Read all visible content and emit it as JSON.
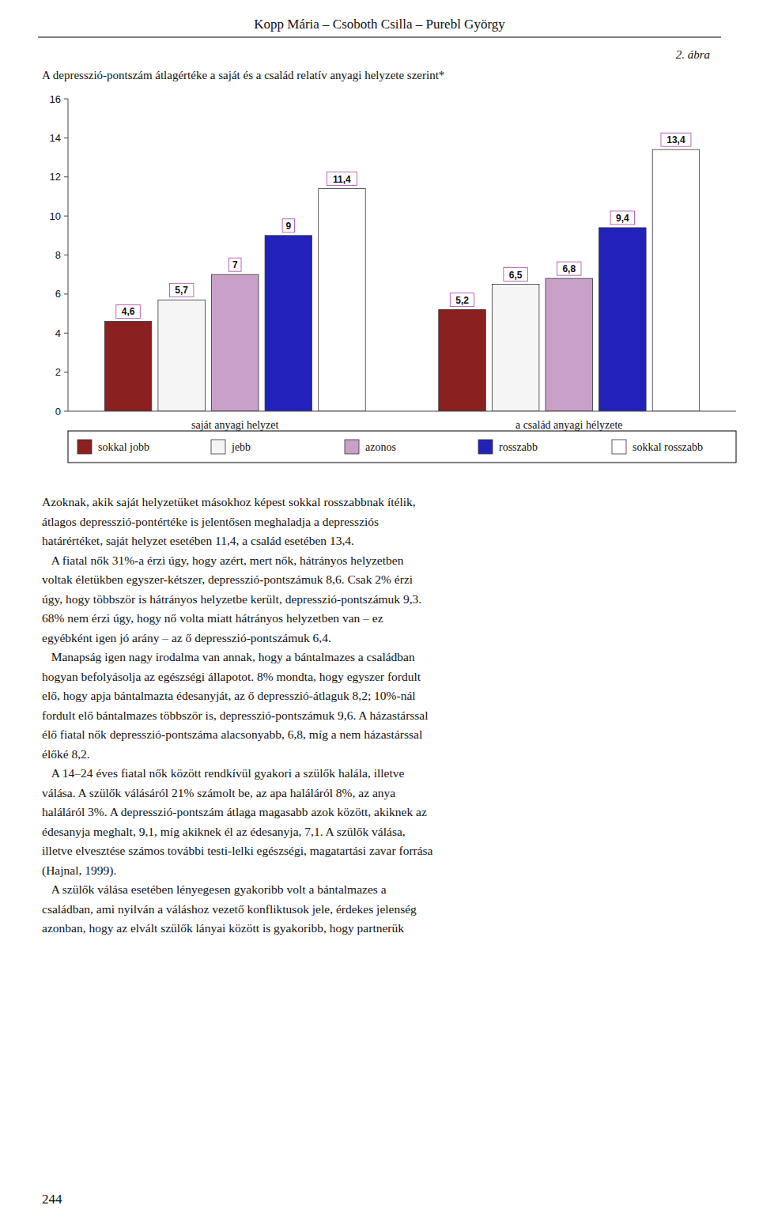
{
  "header": "Kopp Mária – Csoboth Csilla – Purebl György",
  "figure_label": "2. ábra",
  "page_number": "244",
  "body_paragraphs": [
    "Azoknak, akik saját helyzetüket másokhoz képest sokkal rosszabbnak ítélik,",
    "átlagos depresszió-pontértéke is jelentősen meghaladja a depressziós",
    "határértéket, saját helyzet esetében 11,4, a család esetében 13,4.",
    "   A fiatal nők 31%-a érzi úgy, hogy azért, mert nők, hátrányos helyzetben",
    "voltak életükben egyszer-kétszer, depresszió-pontszámuk 8,6. Csak 2% érzi",
    "úgy, hogy többször is hátrányos helyzetbe került, depresszió-pontszámuk 9,3.",
    "68% nem érzi úgy, hogy nő volta miatt hátrányos helyzetben van – ez",
    "egyébként igen jó arány – az ő depresszió-pontszámuk 6,4.",
    "   Manapság igen nagy irodalma van annak, hogy a bántalmazes a családban",
    "hogyan befolyásolja az egészségi állapotot. 8% mondta, hogy egyszer fordult",
    "elő, hogy apja bántalmazta édesanyját, az ő depresszió-átlaguk 8,2; 10%-nál",
    "fordult elő bántalmazes többször is, depresszió-pontszámuk 9,6. A házastárssal",
    "élő fiatal nők depresszió-pontszáma alacsonyabb, 6,8, míg a nem házastárssal",
    "élőké 8,2.",
    "   A 14–24 éves fiatal nők között rendkívül gyakori a szülők halála, illetve",
    "válása. A szülők válásáról 21% számolt be, az apa haláláról 8%, az anya",
    "haláláról 3%. A depresszió-pontszám átlaga magasabb azok között, akiknek az",
    "édesanyja meghalt, 9,1, míg akiknek él az édesanyja, 7,1. A szülők válása,",
    "illetve elvesztése számos további testi-lelki egészségi, magatartási zavar forrása",
    "(Hajnal, 1999).",
    "   A szülők válása esetében lényegesen gyakoribb volt a bántalmazes a",
    "családban, ami nyilván a váláshoz vezető konfliktusok jele, érdekes jelenség",
    "azonban, hogy az elvált szülők lányai között is gyakoribb, hogy partnerük"
  ],
  "chart_data": {
    "type": "bar",
    "title": "A depresszió-pontszám átlagértéke a saját és a család relatív anyagi helyzete szerint*",
    "categories": [
      "saját anyagi helyzet",
      "a család anyagi hélyzete"
    ],
    "series": [
      {
        "name": "sokkal jobb",
        "color": "#8B2020",
        "values": [
          4.6,
          5.2
        ],
        "value_labels": [
          "4,6",
          "5,2"
        ]
      },
      {
        "name": "jebb",
        "color": "#F5F5F5",
        "values": [
          5.7,
          6.5
        ],
        "value_labels": [
          "5,7",
          "6,5"
        ]
      },
      {
        "name": "azonos",
        "color": "#C8A0C8",
        "values": [
          7.0,
          6.8
        ],
        "value_labels": [
          "7",
          "6,8"
        ]
      },
      {
        "name": "rosszabb",
        "color": "#2222BB",
        "values": [
          9.0,
          9.4
        ],
        "value_labels": [
          "9",
          "9,4"
        ]
      },
      {
        "name": "sokkal rosszabb",
        "color": "#FFFFFF",
        "values": [
          11.4,
          13.4
        ],
        "value_labels": [
          "11,4",
          "13,4"
        ]
      }
    ],
    "ylim": [
      0,
      16
    ],
    "yticks": [
      0,
      2,
      4,
      6,
      8,
      10,
      12,
      14,
      16
    ],
    "grid": false,
    "legend": "bottom",
    "data_labels": true
  }
}
